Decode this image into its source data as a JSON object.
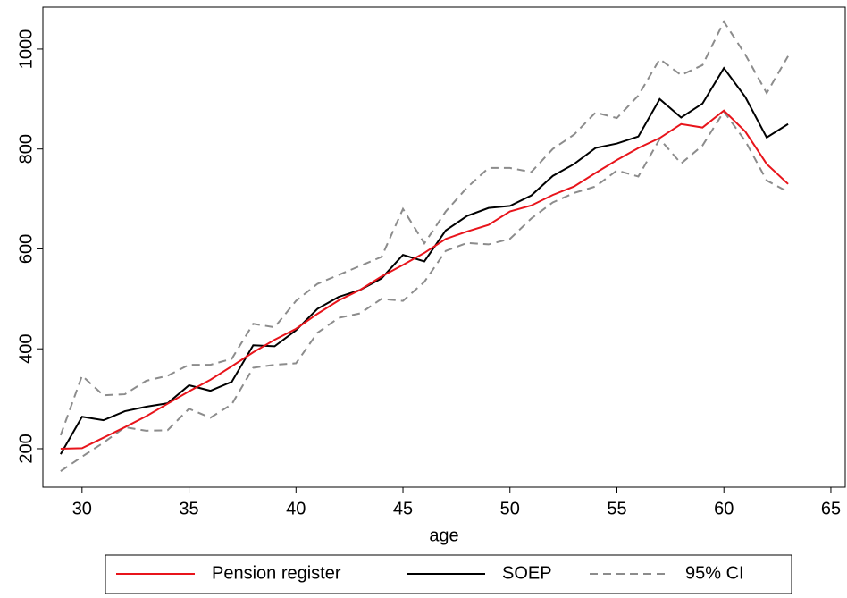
{
  "chart_data": {
    "type": "line",
    "x_label": "age",
    "x": [
      29,
      30,
      31,
      32,
      33,
      34,
      35,
      36,
      37,
      38,
      39,
      40,
      41,
      42,
      43,
      44,
      45,
      46,
      47,
      48,
      49,
      50,
      51,
      52,
      53,
      54,
      55,
      56,
      57,
      58,
      59,
      60,
      61,
      62,
      63
    ],
    "series": [
      {
        "name": "Pension register",
        "color": "#e8141b",
        "style": "solid",
        "values": [
          200,
          201,
          222,
          243,
          265,
          290,
          315,
          338,
          365,
          393,
          418,
          440,
          470,
          497,
          518,
          545,
          568,
          592,
          620,
          635,
          648,
          675,
          687,
          708,
          725,
          752,
          778,
          802,
          822,
          850,
          843,
          877,
          835,
          770,
          730
        ]
      },
      {
        "name": "SOEP",
        "color": "#000000",
        "style": "solid",
        "values": [
          189,
          264,
          257,
          275,
          284,
          291,
          327,
          316,
          334,
          407,
          405,
          437,
          480,
          504,
          518,
          541,
          588,
          575,
          637,
          666,
          682,
          686,
          707,
          746,
          770,
          802,
          811,
          825,
          900,
          863,
          891,
          962,
          904,
          823,
          850
        ]
      },
      {
        "name": "95% CI",
        "color": "#8c8c8c",
        "style": "dashed",
        "upper": [
          227,
          346,
          307,
          309,
          336,
          346,
          368,
          368,
          380,
          450,
          443,
          496,
          530,
          548,
          566,
          584,
          680,
          611,
          675,
          723,
          762,
          762,
          754,
          800,
          829,
          873,
          862,
          907,
          980,
          948,
          968,
          1055,
          989,
          912,
          986
        ],
        "lower": [
          155,
          184,
          212,
          243,
          236,
          237,
          280,
          262,
          289,
          362,
          368,
          371,
          432,
          462,
          471,
          500,
          496,
          534,
          596,
          612,
          609,
          620,
          661,
          693,
          712,
          725,
          757,
          745,
          820,
          771,
          807,
          875,
          816,
          737,
          714
        ]
      }
    ],
    "xlim": [
      28.17,
      65.67
    ],
    "xticks": [
      30,
      35,
      40,
      45,
      50,
      55,
      60,
      65
    ],
    "ylim": [
      123,
      1084
    ],
    "yticks": [
      200,
      400,
      600,
      800,
      1000
    ],
    "legend": "bottom"
  }
}
